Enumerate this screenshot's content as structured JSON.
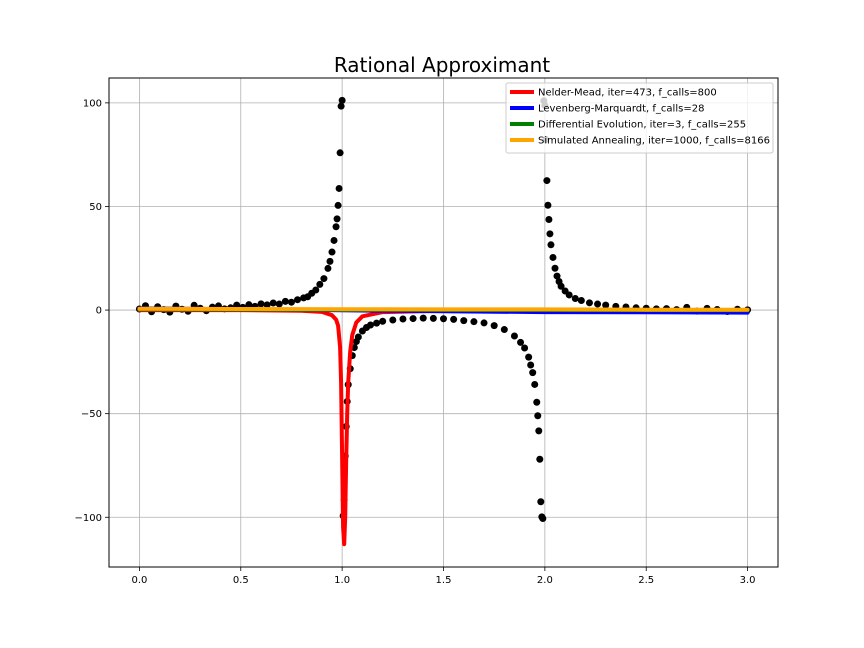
{
  "chart_data": {
    "type": "scatter",
    "title": "Rational Approximant",
    "xlabel": "",
    "ylabel": "",
    "xlim": [
      -0.15,
      3.15
    ],
    "ylim": [
      -124,
      112
    ],
    "xticks": [
      0.0,
      0.5,
      1.0,
      1.5,
      2.0,
      2.5,
      3.0
    ],
    "xtick_labels": [
      "0.0",
      "0.5",
      "1.0",
      "1.5",
      "2.0",
      "2.5",
      "3.0"
    ],
    "yticks": [
      -100,
      -50,
      0,
      50,
      100
    ],
    "ytick_labels": [
      "−100",
      "−50",
      "0",
      "50",
      "100"
    ],
    "grid": true,
    "legend_position": "top-right",
    "scatter": {
      "color": "#000000",
      "x": [
        0.0,
        0.03,
        0.06,
        0.09,
        0.12,
        0.15,
        0.18,
        0.21,
        0.24,
        0.27,
        0.3,
        0.33,
        0.36,
        0.39,
        0.42,
        0.45,
        0.48,
        0.51,
        0.54,
        0.57,
        0.6,
        0.63,
        0.66,
        0.69,
        0.72,
        0.75,
        0.78,
        0.81,
        0.83,
        0.85,
        0.87,
        0.89,
        0.91,
        0.93,
        0.94,
        0.95,
        0.96,
        0.97,
        0.975,
        0.98,
        0.985,
        0.99,
        0.995,
        1.0,
        1.005,
        1.01,
        1.015,
        1.02,
        1.025,
        1.03,
        1.04,
        1.05,
        1.06,
        1.07,
        1.08,
        1.1,
        1.12,
        1.14,
        1.17,
        1.2,
        1.25,
        1.3,
        1.35,
        1.4,
        1.45,
        1.5,
        1.55,
        1.6,
        1.65,
        1.7,
        1.75,
        1.8,
        1.85,
        1.88,
        1.9,
        1.92,
        1.93,
        1.94,
        1.95,
        1.96,
        1.965,
        1.97,
        1.975,
        1.98,
        1.985,
        1.99,
        1.995,
        2.0,
        2.005,
        2.01,
        2.015,
        2.02,
        2.025,
        2.03,
        2.04,
        2.05,
        2.06,
        2.07,
        2.08,
        2.1,
        2.12,
        2.15,
        2.18,
        2.22,
        2.26,
        2.3,
        2.35,
        2.4,
        2.45,
        2.5,
        2.55,
        2.6,
        2.65,
        2.7,
        2.75,
        2.8,
        2.85,
        2.9,
        2.95,
        3.0
      ],
      "y": [
        0.5,
        2.1,
        -0.8,
        1.6,
        0.2,
        -1.0,
        1.9,
        0.4,
        -0.6,
        2.3,
        0.9,
        -0.3,
        1.4,
        2.0,
        0.6,
        1.1,
        2.4,
        1.3,
        2.6,
        1.8,
        3.0,
        2.5,
        3.4,
        2.9,
        4.2,
        3.8,
        5.0,
        5.9,
        6.4,
        8.1,
        9.7,
        12.4,
        15.2,
        20.1,
        23.5,
        28.0,
        33.6,
        40.2,
        44.0,
        50.5,
        58.7,
        75.9,
        98.4,
        101.2,
        -99.3,
        -91.6,
        -70.5,
        -56.2,
        -44.1,
        -36.0,
        -28.3,
        -22.0,
        -18.1,
        -15.2,
        -13.0,
        -10.1,
        -8.4,
        -7.2,
        -6.3,
        -5.4,
        -4.8,
        -4.3,
        -4.1,
        -3.9,
        -4.0,
        -4.2,
        -4.5,
        -5.1,
        -5.6,
        -6.2,
        -7.5,
        -9.4,
        -12.5,
        -15.6,
        -18.3,
        -22.7,
        -26.5,
        -30.2,
        -35.9,
        -44.5,
        -51.0,
        -58.3,
        -72.0,
        -92.5,
        -99.8,
        -100.6,
        101.0,
        98.7,
        82.3,
        62.5,
        50.6,
        43.7,
        36.8,
        31.5,
        25.4,
        20.2,
        16.4,
        13.8,
        11.5,
        9.2,
        7.3,
        5.6,
        4.6,
        3.5,
        2.9,
        2.4,
        1.8,
        1.5,
        1.1,
        0.9,
        0.6,
        0.7,
        0.2,
        1.3,
        -0.5,
        0.8,
        0.3,
        -0.7,
        0.4,
        0.1
      ]
    },
    "series": [
      {
        "name": "Nelder-Mead, iter=473, f_calls=800",
        "color": "#ff0000",
        "x": [
          0.0,
          0.5,
          0.8,
          0.9,
          0.95,
          0.97,
          0.98,
          0.99,
          0.995,
          1.0,
          1.005,
          1.01,
          1.015,
          1.02,
          1.025,
          1.03,
          1.04,
          1.05,
          1.07,
          1.1,
          1.2,
          1.5,
          2.0,
          2.5,
          3.0
        ],
        "y": [
          0.0,
          0.0,
          -0.3,
          -0.9,
          -2.5,
          -4.6,
          -7.5,
          -18.0,
          -35.0,
          -70.0,
          -105.0,
          -113.0,
          -100.0,
          -72.0,
          -50.0,
          -35.0,
          -20.0,
          -12.0,
          -6.0,
          -3.0,
          -1.0,
          -0.3,
          -0.1,
          0.0,
          0.0
        ]
      },
      {
        "name": "Levenberg-Marquardt, f_calls=28",
        "color": "#0000ff",
        "x": [
          0.0,
          0.5,
          1.0,
          1.5,
          2.0,
          2.5,
          3.0
        ],
        "y": [
          0.8,
          0.4,
          -0.1,
          -0.6,
          -1.0,
          -1.1,
          -1.2
        ]
      },
      {
        "name": "Differential Evolution, iter=3, f_calls=255",
        "color": "#008000",
        "x": [
          0.0,
          1.0,
          2.0,
          3.0
        ],
        "y": [
          0.3,
          0.2,
          0.1,
          0.0
        ]
      },
      {
        "name": "Simulated Annealing, iter=1000, f_calls=8166",
        "color": "#ffa500",
        "x": [
          0.0,
          0.5,
          1.0,
          1.5,
          2.0,
          2.5,
          3.0
        ],
        "y": [
          0.6,
          0.5,
          0.4,
          0.3,
          0.3,
          0.2,
          0.2
        ]
      }
    ]
  }
}
